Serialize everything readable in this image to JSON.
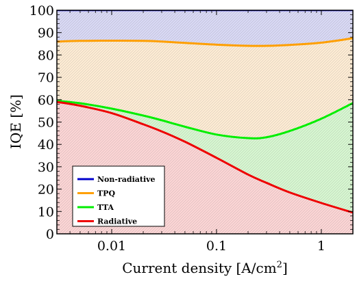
{
  "chart_data": {
    "type": "area",
    "xscale": "log",
    "xlim": [
      0.003,
      2.0
    ],
    "ylim": [
      0,
      100
    ],
    "xlabel": "Current density [A/cm",
    "xlabel_sup": "2",
    "xlabel_end": "]",
    "ylabel": "IQE [%]",
    "xticks": [
      {
        "value": 0.01,
        "label": "0.01"
      },
      {
        "value": 0.1,
        "label": "0.1"
      },
      {
        "value": 1,
        "label": "1"
      }
    ],
    "yticks": [
      {
        "value": 0,
        "label": "0"
      },
      {
        "value": 10,
        "label": "10"
      },
      {
        "value": 20,
        "label": "20"
      },
      {
        "value": 30,
        "label": "30"
      },
      {
        "value": 40,
        "label": "40"
      },
      {
        "value": 50,
        "label": "50"
      },
      {
        "value": 60,
        "label": "60"
      },
      {
        "value": 70,
        "label": "70"
      },
      {
        "value": 80,
        "label": "80"
      },
      {
        "value": 90,
        "label": "90"
      },
      {
        "value": 100,
        "label": "100"
      }
    ],
    "legend_position": "bottom-left",
    "x": [
      0.003,
      0.005,
      0.01,
      0.02,
      0.03,
      0.05,
      0.1,
      0.2,
      0.3,
      0.5,
      1.0,
      2.0
    ],
    "series": [
      {
        "name": "Non-radiative",
        "color": "#0000cc",
        "fill": "#d8d8f4",
        "values": [
          100,
          100,
          100,
          100,
          100,
          100,
          100,
          100,
          100,
          100,
          100,
          100
        ]
      },
      {
        "name": "TPQ",
        "color": "#ff9f00",
        "fill": "#fdebd3",
        "values": [
          86.0,
          86.3,
          86.4,
          86.3,
          86.0,
          85.4,
          84.6,
          84.1,
          84.1,
          84.5,
          85.5,
          87.5
        ]
      },
      {
        "name": "TTA",
        "color": "#00ee00",
        "fill": "#d6f6d0",
        "values": [
          59.5,
          58.4,
          56.0,
          52.9,
          50.8,
          47.9,
          44.4,
          42.8,
          43.2,
          46.0,
          51.5,
          58.5
        ]
      },
      {
        "name": "Radiative",
        "color": "#ee0000",
        "fill": "#fbd4d4",
        "values": [
          59.0,
          57.3,
          54.0,
          49.0,
          45.8,
          41.2,
          34.0,
          26.5,
          22.8,
          18.5,
          13.8,
          9.5
        ]
      }
    ]
  }
}
